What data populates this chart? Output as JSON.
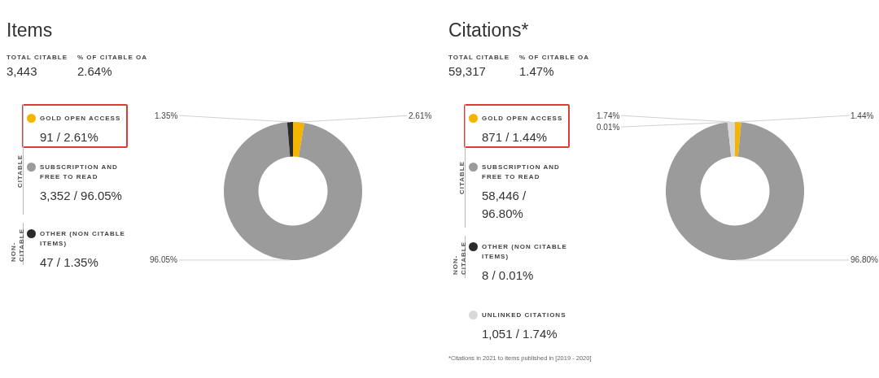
{
  "chart_data": [
    {
      "type": "donut",
      "title": "Items",
      "legend": "left",
      "categories": [
        "GOLD OPEN ACCESS",
        "SUBSCRIPTION AND FREE TO READ",
        "OTHER (NON CITABLE ITEMS)"
      ],
      "values": [
        2.61,
        96.05,
        1.35
      ],
      "colors": [
        "#f5b400",
        "#9b9b9b",
        "#2b2b2b"
      ],
      "value_labels": [
        "2.61%",
        "96.05%",
        "1.35%"
      ],
      "annotations": [
        "TOTAL CITABLE",
        "3,443",
        "% OF CITABLE OA",
        "2.64%",
        "CITABLE",
        "NON-CITABLE",
        "91 / 2.61%",
        "3,352 / 96.05%",
        "47 / 1.35%"
      ]
    },
    {
      "type": "donut",
      "title": "Citations*",
      "legend": "left",
      "categories": [
        "GOLD OPEN ACCESS",
        "SUBSCRIPTION AND FREE TO READ",
        "OTHER (NON CITABLE ITEMS)",
        "UNLINKED CITATIONS"
      ],
      "values": [
        1.44,
        96.8,
        0.01,
        1.74
      ],
      "colors": [
        "#f5b400",
        "#9b9b9b",
        "#2b2b2b",
        "#d9d9d9"
      ],
      "value_labels": [
        "1.44%",
        "96.80%",
        "0.01%",
        "1.74%"
      ],
      "annotations": [
        "TOTAL CITABLE",
        "59,317",
        "% OF CITABLE OA",
        "1.47%",
        "CITABLE",
        "NON-CITABLE",
        "871 / 1.44%",
        "58,446 / 96.80%",
        "8 / 0.01%",
        "1,051 / 1.74%",
        "*Citations in 2021 to items published in [2019 - 2020]"
      ]
    }
  ]
}
